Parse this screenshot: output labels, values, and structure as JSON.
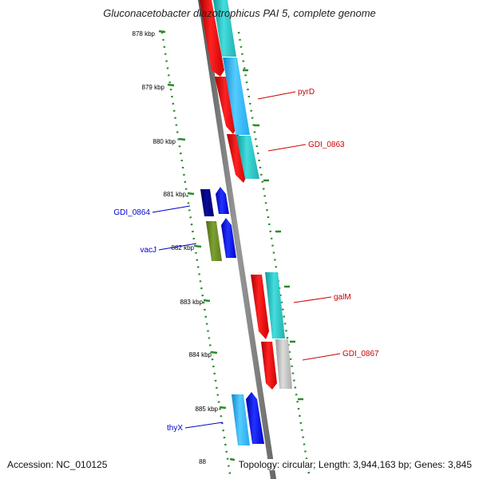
{
  "title": "Gluconacetobacter diazotrophicus PAI 5, complete genome",
  "accession": "Accession: NC_010125",
  "topology": "Topology: circular; Length: 3,944,163 bp; Genes: 3,845",
  "ruler": {
    "ticks": [
      "878 kbp",
      "879 kbp",
      "880 kbp",
      "881 kbp",
      "882 kbp",
      "883 kbp",
      "884 kbp",
      "885 kbp",
      "88"
    ]
  },
  "genes": [
    {
      "label": "pyrD",
      "label_color": "#cc0000"
    },
    {
      "label": "GDI_0863",
      "label_color": "#cc0000"
    },
    {
      "label": "GDI_0864",
      "label_color": "#0000cc"
    },
    {
      "label": "vacJ",
      "label_color": "#0000cc"
    },
    {
      "label": "galM",
      "label_color": "#cc0000"
    },
    {
      "label": "GDI_0867",
      "label_color": "#cc0000"
    },
    {
      "label": "thyX",
      "label_color": "#0000cc"
    }
  ],
  "colors": {
    "backbone": "#7a7a7a",
    "ruler": "#2d8a2d",
    "cds_forward": "#ee1111",
    "cds_reverse": "#0000ee",
    "cds_dark": "#000090",
    "cds_olive": "#6b8e23",
    "match_cyan": "#22cccc",
    "match_light": "#33aaee",
    "match_gray": "#bbbbbb"
  }
}
